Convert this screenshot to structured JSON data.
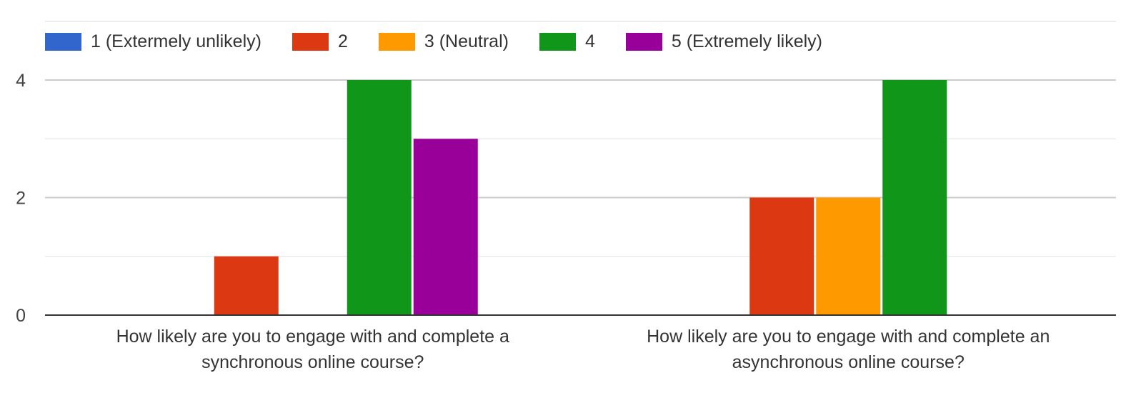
{
  "chart_data": {
    "type": "bar",
    "categories": [
      [
        "How likely are you to engage with and complete a",
        "synchronous online course?"
      ],
      [
        "How likely are you to engage with and complete an",
        "asynchronous online course?"
      ]
    ],
    "series": [
      {
        "name": "1 (Extermely unlikely)",
        "color": "#3366cc",
        "values": [
          0,
          0
        ]
      },
      {
        "name": "2",
        "color": "#dc3912",
        "values": [
          1,
          2
        ]
      },
      {
        "name": "3 (Neutral)",
        "color": "#ff9900",
        "values": [
          0,
          2
        ]
      },
      {
        "name": "4",
        "color": "#109618",
        "values": [
          4,
          4
        ]
      },
      {
        "name": "5 (Extremely likely)",
        "color": "#990099",
        "values": [
          3,
          0
        ]
      }
    ],
    "y_ticks": [
      0,
      2,
      4
    ],
    "ylim": [
      0,
      4
    ],
    "gridlines": true,
    "legend_position": "top"
  }
}
